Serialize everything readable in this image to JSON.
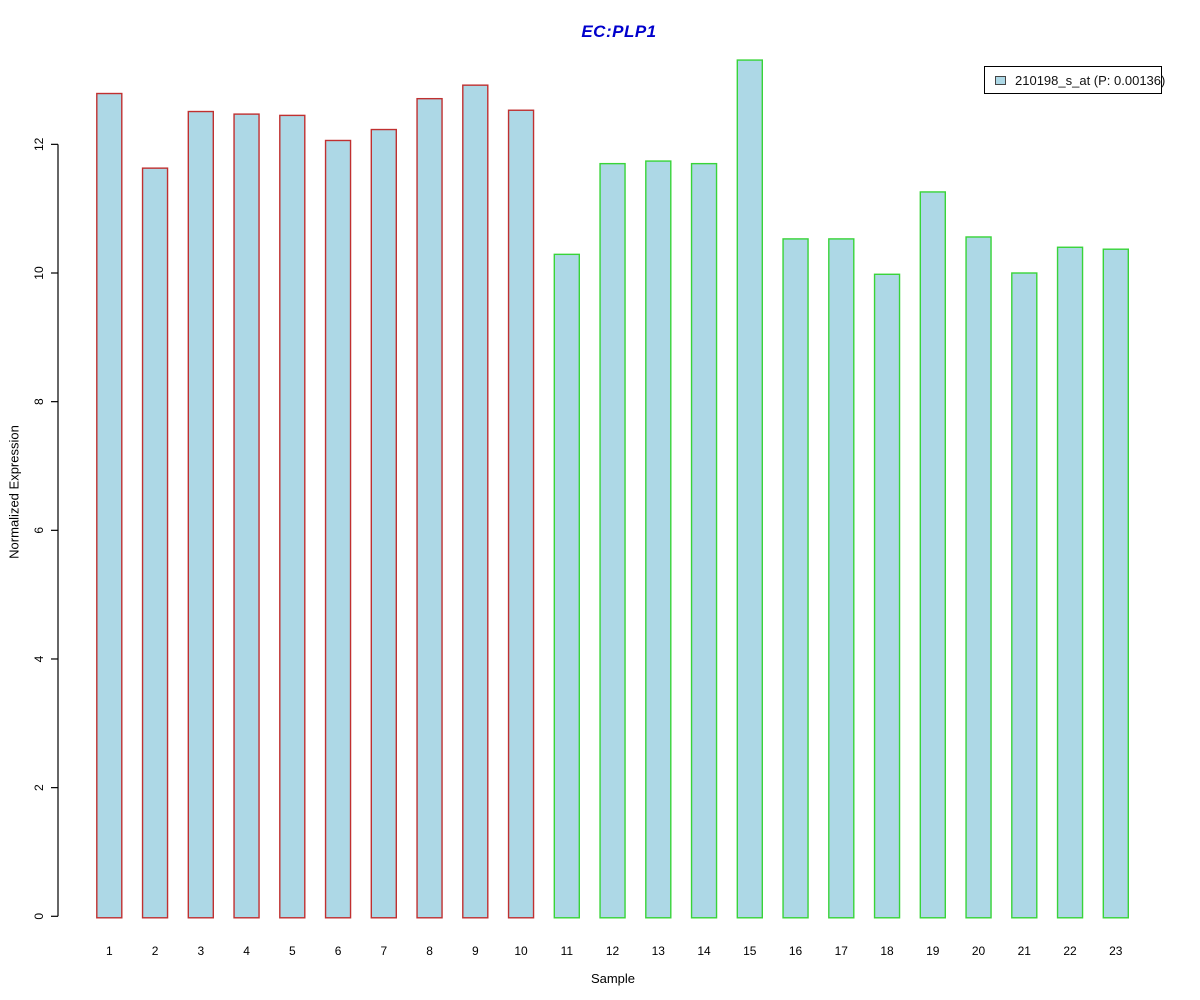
{
  "chart_data": {
    "type": "bar",
    "title": "EC:PLP1",
    "title_color": "#0000CC",
    "xlabel": "Sample",
    "ylabel": "Normalized Expression",
    "categories": [
      "1",
      "2",
      "3",
      "4",
      "5",
      "6",
      "7",
      "8",
      "9",
      "10",
      "11",
      "12",
      "13",
      "14",
      "15",
      "16",
      "17",
      "18",
      "19",
      "20",
      "21",
      "22",
      "23"
    ],
    "values": [
      12.79,
      11.63,
      12.51,
      12.47,
      12.45,
      12.06,
      12.23,
      12.71,
      12.92,
      12.53,
      10.29,
      11.7,
      11.74,
      11.7,
      13.31,
      10.53,
      10.53,
      9.98,
      11.26,
      10.56,
      10.0,
      10.4,
      10.37
    ],
    "series_name": "210198_s_at (P: 0.00136)",
    "yticks": [
      0,
      2,
      4,
      6,
      8,
      10,
      12
    ],
    "ylim": [
      0,
      13.5
    ],
    "grid": false,
    "legend_position": "top-right",
    "bar_fill": "#ADD8E6",
    "bar_groups": [
      {
        "label": "samples 1-10",
        "count": 10,
        "edge_color": "#C03030"
      },
      {
        "label": "samples 11-23",
        "count": 13,
        "edge_color": "#38D438"
      }
    ],
    "axis_color": "#000000",
    "tick_label_rotation": "vertical"
  },
  "legend": {
    "label": "210198_s_at (P: 0.00136)",
    "swatch_fill": "#ADD8E6",
    "swatch_edge": "#444444"
  }
}
